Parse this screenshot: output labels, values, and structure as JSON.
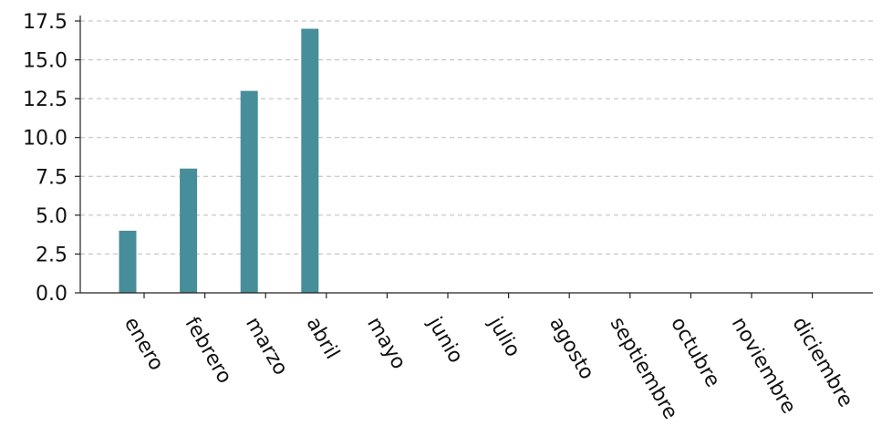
{
  "chart_data": {
    "type": "bar",
    "title": "",
    "xlabel": "",
    "ylabel": "",
    "categories": [
      "enero",
      "febrero",
      "marzo",
      "abril",
      "mayo",
      "junio",
      "julio",
      "agosto",
      "septiembre",
      "octubre",
      "noviembre",
      "diciembre"
    ],
    "values": [
      4,
      8,
      13,
      17,
      0,
      0,
      0,
      0,
      0,
      0,
      0,
      0
    ],
    "ylim": [
      0,
      17.5
    ],
    "yticks": [
      "0.0",
      "2.5",
      "5.0",
      "7.5",
      "10.0",
      "12.5",
      "15.0",
      "17.5"
    ],
    "grid": "horizontal dashed",
    "legend": "none",
    "colors": {
      "bar": "#468e99",
      "grid": "#bbbbbb",
      "axis": "#222222"
    }
  }
}
